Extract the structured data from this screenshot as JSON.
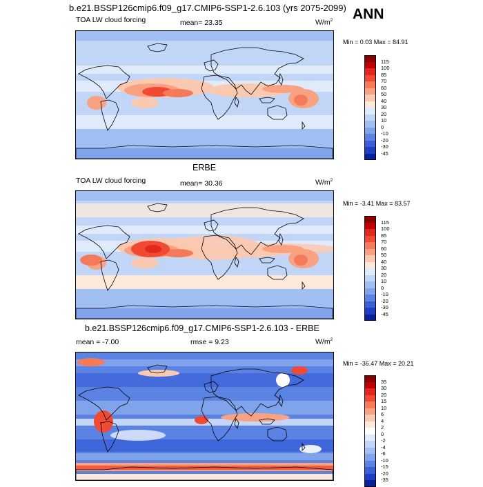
{
  "header": {
    "case_title": "b.e21.BSSP126cmip6.f09_g17.CMIP6-SSP1-2.6.103 (yrs 2075-2099)",
    "season": "ANN"
  },
  "panels": [
    {
      "name": "model",
      "title": "",
      "left_label": "TOA LW cloud forcing",
      "center_label": "mean=  23.35",
      "units": "W/m",
      "units_sup": "2",
      "minmax": "Min =   0.03 Max =  84.91",
      "colorbar": {
        "labels": [
          "115",
          "100",
          "85",
          "70",
          "60",
          "50",
          "40",
          "30",
          "20",
          "10",
          "0",
          "-10",
          "-20",
          "-30",
          "-45"
        ],
        "colors": [
          "#8b0000",
          "#c00000",
          "#e0281e",
          "#f04a32",
          "#f47a5a",
          "#f9a282",
          "#fbc9b0",
          "#fde9dc",
          "#dfeafb",
          "#c1d6f7",
          "#9fbff2",
          "#7fa4ec",
          "#5b83e4",
          "#3a5fd8",
          "#1e3fc4",
          "#0a1f9a"
        ]
      }
    },
    {
      "name": "obs",
      "title": "ERBE",
      "left_label": "TOA LW cloud forcing",
      "center_label": "mean=  30.36",
      "units": "W/m",
      "units_sup": "2",
      "minmax": "Min =  -3.41 Max =  83.57",
      "colorbar": {
        "labels": [
          "115",
          "100",
          "85",
          "70",
          "60",
          "50",
          "40",
          "30",
          "20",
          "10",
          "0",
          "-10",
          "-20",
          "-30",
          "-45"
        ],
        "colors": [
          "#8b0000",
          "#c00000",
          "#e0281e",
          "#f04a32",
          "#f47a5a",
          "#f9a282",
          "#fbc9b0",
          "#fde9dc",
          "#dfeafb",
          "#c1d6f7",
          "#9fbff2",
          "#7fa4ec",
          "#5b83e4",
          "#3a5fd8",
          "#1e3fc4",
          "#0a1f9a"
        ]
      }
    },
    {
      "name": "diff",
      "title": "b.e21.BSSP126cmip6.f09_g17.CMIP6-SSP1-2.6.103 - ERBE",
      "left_label": "mean =  -7.00",
      "center_label": "rmse =   9.23",
      "units": "W/m",
      "units_sup": "2",
      "minmax": "Min = -36.47 Max =  20.21",
      "colorbar": {
        "labels": [
          "35",
          "30",
          "20",
          "15",
          "10",
          "6",
          "4",
          "2",
          "0",
          "-2",
          "-4",
          "-6",
          "-10",
          "-15",
          "-20",
          "-35"
        ],
        "colors": [
          "#8b0000",
          "#c00000",
          "#e0281e",
          "#f04a32",
          "#f47a5a",
          "#f9a282",
          "#fbc9b0",
          "#fde9dc",
          "#ffffff",
          "#dfeafb",
          "#c1d6f7",
          "#9fbff2",
          "#7fa4ec",
          "#5b83e4",
          "#3a5fd8",
          "#1e3fc4",
          "#0a1f9a"
        ]
      }
    }
  ],
  "chart_data": [
    {
      "type": "heatmap",
      "title": "TOA LW cloud forcing",
      "subtitle": "b.e21.BSSP126cmip6.f09_g17.CMIP6-SSP1-2.6.103 (yrs 2075-2099)",
      "season": "ANN",
      "units": "W/m2",
      "mean": 23.35,
      "min": 0.03,
      "max": 84.91,
      "contour_levels": [
        -45,
        -30,
        -20,
        -10,
        0,
        10,
        20,
        30,
        40,
        50,
        60,
        70,
        85,
        100,
        115
      ]
    },
    {
      "type": "heatmap",
      "title": "ERBE",
      "units": "W/m2",
      "mean": 30.36,
      "min": -3.41,
      "max": 83.57,
      "contour_levels": [
        -45,
        -30,
        -20,
        -10,
        0,
        10,
        20,
        30,
        40,
        50,
        60,
        70,
        85,
        100,
        115
      ]
    },
    {
      "type": "heatmap",
      "title": "b.e21.BSSP126cmip6.f09_g17.CMIP6-SSP1-2.6.103 - ERBE",
      "units": "W/m2",
      "mean": -7.0,
      "rmse": 9.23,
      "min": -36.47,
      "max": 20.21,
      "contour_levels": [
        -35,
        -20,
        -15,
        -10,
        -6,
        -4,
        -2,
        0,
        2,
        4,
        6,
        10,
        15,
        20,
        30,
        35
      ]
    }
  ]
}
